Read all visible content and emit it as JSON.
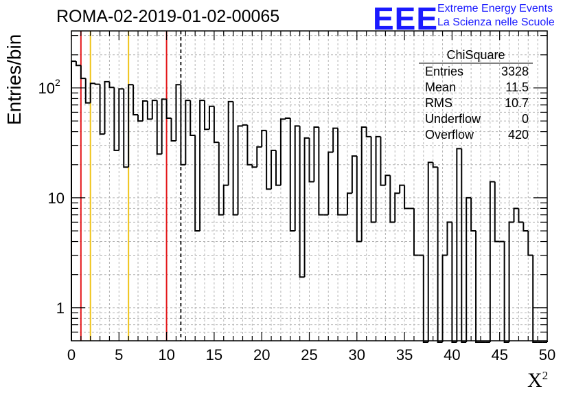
{
  "title": "ROMA-02-2019-01-02-00065",
  "logo": {
    "mark": "EEE",
    "line1": "Extreme Energy Events",
    "line2": "La Scienza nelle Scuole"
  },
  "stats": {
    "title": "ChiSquare",
    "rows": [
      {
        "label": "Entries",
        "value": "3328"
      },
      {
        "label": "Mean",
        "value": "11.5"
      },
      {
        "label": "RMS",
        "value": "10.7"
      },
      {
        "label": "Underflow",
        "value": "0"
      },
      {
        "label": "Overflow",
        "value": "420"
      }
    ]
  },
  "chart_data": {
    "type": "bar",
    "style": "step-histogram",
    "xlabel": "X",
    "xlabel_superscript": "2",
    "ylabel": "Entries/bin",
    "xlim": [
      0,
      50
    ],
    "ylim": [
      0.5,
      330
    ],
    "yscale": "log",
    "grid": true,
    "bin_width": 0.5,
    "x_ticks": [
      "0",
      "5",
      "10",
      "15",
      "20",
      "25",
      "30",
      "35",
      "40",
      "45",
      "50"
    ],
    "y_ticks": [
      {
        "value": 1,
        "label": "1"
      },
      {
        "value": 10,
        "label": "10"
      },
      {
        "value": 100,
        "label": "10",
        "exponent": "2"
      }
    ],
    "values": [
      175,
      160,
      122,
      73,
      110,
      108,
      38,
      114,
      101,
      27,
      98,
      19,
      107,
      57,
      50,
      76,
      52,
      77,
      25,
      79,
      53,
      33,
      107,
      20,
      77,
      37,
      5,
      77,
      42,
      68,
      32,
      7,
      13,
      75,
      7,
      45,
      46,
      20,
      19,
      29,
      41,
      12,
      27,
      13,
      52,
      53,
      5,
      45,
      1.9,
      35,
      14,
      44,
      7,
      7,
      26,
      43,
      7,
      7,
      11,
      24,
      4,
      44,
      36,
      6,
      36,
      13,
      16,
      6,
      11,
      13,
      8,
      8,
      3,
      3,
      0,
      21,
      19,
      0,
      3,
      6,
      0,
      28,
      0,
      10,
      5,
      0,
      0,
      0,
      14,
      4,
      4,
      0,
      6,
      8,
      6,
      5,
      3,
      0,
      0,
      0
    ],
    "vlines": [
      {
        "x": 1,
        "color": "#e41a1c",
        "style": "solid"
      },
      {
        "x": 2,
        "color": "#f0c419",
        "style": "solid"
      },
      {
        "x": 6,
        "color": "#f0c419",
        "style": "solid"
      },
      {
        "x": 10,
        "color": "#e41a1c",
        "style": "solid"
      },
      {
        "x": 11.5,
        "color": "#000000",
        "style": "dashed"
      }
    ]
  }
}
